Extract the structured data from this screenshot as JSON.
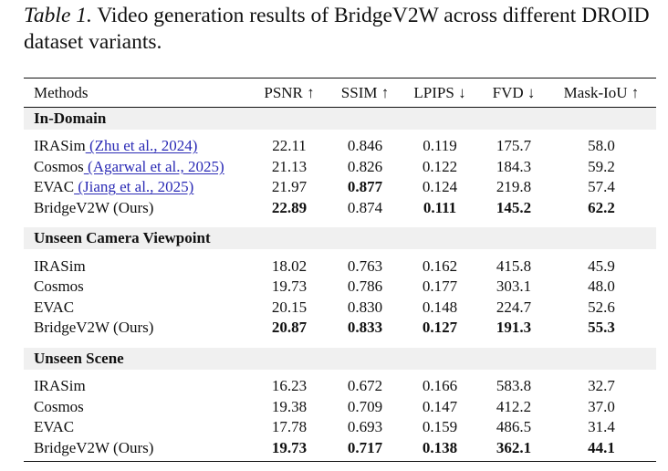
{
  "caption": {
    "label": "Table 1.",
    "text": "Video generation results of BridgeV2W across different DROID dataset variants."
  },
  "table": {
    "headers": [
      "Methods",
      "PSNR ↑",
      "SSIM ↑",
      "LPIPS ↓",
      "FVD ↓",
      "Mask-IoU ↑"
    ],
    "sections": [
      {
        "title": "In-Domain",
        "rows": [
          {
            "method": "IRASim",
            "cite": " (Zhu et al., 2024)",
            "values": [
              "22.11",
              "0.846",
              "0.119",
              "175.7",
              "58.0"
            ],
            "bold": [
              false,
              false,
              false,
              false,
              false
            ]
          },
          {
            "method": "Cosmos",
            "cite": " (Agarwal et al., 2025)",
            "values": [
              "21.13",
              "0.826",
              "0.122",
              "184.3",
              "59.2"
            ],
            "bold": [
              false,
              false,
              false,
              false,
              false
            ]
          },
          {
            "method": "EVAC",
            "cite": " (Jiang et al., 2025)",
            "values": [
              "21.97",
              "0.877",
              "0.124",
              "219.8",
              "57.4"
            ],
            "bold": [
              false,
              true,
              false,
              false,
              false
            ]
          },
          {
            "method": "BridgeV2W (Ours)",
            "cite": "",
            "values": [
              "22.89",
              "0.874",
              "0.111",
              "145.2",
              "62.2"
            ],
            "bold": [
              true,
              false,
              true,
              true,
              true
            ]
          }
        ]
      },
      {
        "title": "Unseen Camera Viewpoint",
        "rows": [
          {
            "method": "IRASim",
            "cite": "",
            "values": [
              "18.02",
              "0.763",
              "0.162",
              "415.8",
              "45.9"
            ],
            "bold": [
              false,
              false,
              false,
              false,
              false
            ]
          },
          {
            "method": "Cosmos",
            "cite": "",
            "values": [
              "19.73",
              "0.786",
              "0.177",
              "303.1",
              "48.0"
            ],
            "bold": [
              false,
              false,
              false,
              false,
              false
            ]
          },
          {
            "method": "EVAC",
            "cite": "",
            "values": [
              "20.15",
              "0.830",
              "0.148",
              "224.7",
              "52.6"
            ],
            "bold": [
              false,
              false,
              false,
              false,
              false
            ]
          },
          {
            "method": "BridgeV2W (Ours)",
            "cite": "",
            "values": [
              "20.87",
              "0.833",
              "0.127",
              "191.3",
              "55.3"
            ],
            "bold": [
              true,
              true,
              true,
              true,
              true
            ]
          }
        ]
      },
      {
        "title": "Unseen Scene",
        "rows": [
          {
            "method": "IRASim",
            "cite": "",
            "values": [
              "16.23",
              "0.672",
              "0.166",
              "583.8",
              "32.7"
            ],
            "bold": [
              false,
              false,
              false,
              false,
              false
            ]
          },
          {
            "method": "Cosmos",
            "cite": "",
            "values": [
              "19.38",
              "0.709",
              "0.147",
              "412.2",
              "37.0"
            ],
            "bold": [
              false,
              false,
              false,
              false,
              false
            ]
          },
          {
            "method": "EVAC",
            "cite": "",
            "values": [
              "17.78",
              "0.693",
              "0.159",
              "486.5",
              "31.4"
            ],
            "bold": [
              false,
              false,
              false,
              false,
              false
            ]
          },
          {
            "method": "BridgeV2W (Ours)",
            "cite": "",
            "values": [
              "19.73",
              "0.717",
              "0.138",
              "362.1",
              "44.1"
            ],
            "bold": [
              true,
              true,
              true,
              true,
              true
            ]
          }
        ]
      }
    ]
  }
}
